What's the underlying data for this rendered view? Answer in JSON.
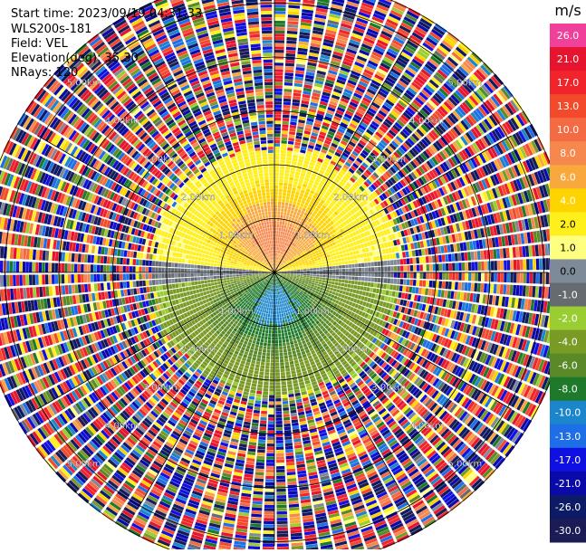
{
  "header": {
    "start_time": "Start time: 2023/09/19 04:31:33",
    "station": "WLS200s-181",
    "field": "Field: VEL",
    "elevation": "Elevation(deg): 35.30",
    "nrays": "NRays: 120"
  },
  "colorbar": {
    "unit": "m/s",
    "labels": [
      "26.0",
      "21.0",
      "17.0",
      "13.0",
      "10.0",
      "8.0",
      "6.0",
      "4.0",
      "2.0",
      "1.0",
      "0.0",
      "-1.0",
      "-2.0",
      "-4.0",
      "-6.0",
      "-8.0",
      "-10.0",
      "-13.0",
      "-17.0",
      "-21.0",
      "-26.0",
      "-30.0"
    ],
    "colors": [
      "#f0409a",
      "#e6142e",
      "#f0242a",
      "#f24a2a",
      "#f46a42",
      "#f6884e",
      "#f8a83c",
      "#fdd400",
      "#ffef1a",
      "#ffff80",
      "#7f8a99",
      "#666b70",
      "#9acd32",
      "#7a9a26",
      "#5a8a28",
      "#1e7a2a",
      "#1c86cc",
      "#1e6ee8",
      "#1010e0",
      "#0a0aa8",
      "#0d1a66",
      "#1b1b55"
    ]
  },
  "range_rings": [
    {
      "label": "1.00km"
    },
    {
      "label": "2.00km"
    },
    {
      "label": "3.00km"
    },
    {
      "label": "4.00km"
    },
    {
      "label": "5.00km"
    }
  ],
  "chart_data": {
    "type": "heatmap",
    "subtype": "polar PPI scan",
    "field": "VEL",
    "units": "m/s",
    "n_rays": 120,
    "elevation_deg": 35.3,
    "range_km_max": 5.5,
    "ring_labels_km": [
      1.0,
      2.0,
      3.0,
      4.0,
      5.0
    ],
    "colorbar_levels": [
      26.0,
      21.0,
      17.0,
      13.0,
      10.0,
      8.0,
      6.0,
      4.0,
      2.0,
      1.0,
      0.0,
      -1.0,
      -2.0,
      -4.0,
      -6.0,
      -8.0,
      -10.0,
      -13.0,
      -17.0,
      -21.0,
      -26.0,
      -30.0
    ],
    "valid_data_range_km": [
      0.1,
      2.3
    ],
    "velocity_pattern": "north half positive (approx 2 to 8 m/s, max near centre-north), south half negative (approx -1 to -8 m/s), near-zero band along the east-west axis",
    "outer_region": "noisy / random values beyond about 2.3 km"
  }
}
